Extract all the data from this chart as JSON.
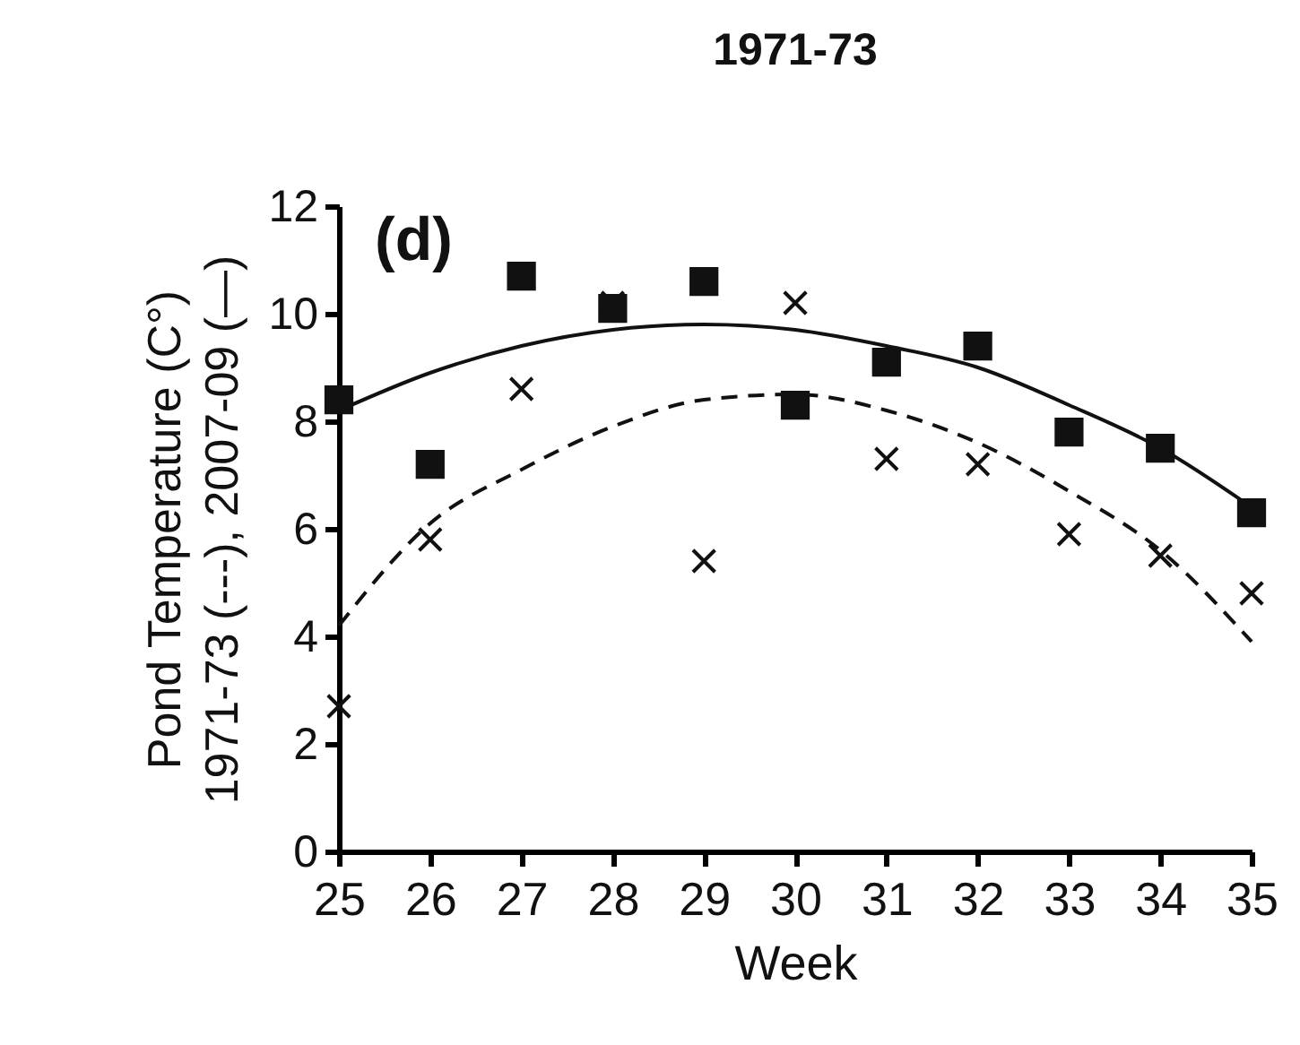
{
  "chart_data": {
    "type": "scatter",
    "title": "1971-73",
    "xlabel": "Week",
    "ylabel": "Pond Temperature (C°)\n1971-73 (---),  2007-09 (—)",
    "x": [
      25,
      26,
      27,
      28,
      29,
      30,
      31,
      32,
      33,
      34,
      35
    ],
    "series": [
      {
        "marker": "square",
        "color": "#111111",
        "values": [
          8.4,
          7.2,
          10.7,
          10.1,
          10.6,
          8.3,
          9.1,
          9.4,
          7.8,
          7.5,
          6.3
        ]
      },
      {
        "marker": "cross",
        "color": "#111111",
        "values": [
          2.7,
          5.8,
          8.6,
          10.2,
          5.4,
          10.2,
          7.3,
          7.2,
          5.9,
          5.5,
          4.8
        ]
      },
      {
        "type": "line",
        "marker": "none",
        "line_style": "solid",
        "color": "#111111",
        "values": [
          8.2,
          8.9,
          9.4,
          9.7,
          9.8,
          9.7,
          9.4,
          9.0,
          8.3,
          7.5,
          6.4
        ]
      },
      {
        "type": "line",
        "marker": "none",
        "line_style": "dashed",
        "color": "#111111",
        "values": [
          4.2,
          6.1,
          7.1,
          7.9,
          8.4,
          8.5,
          8.2,
          7.6,
          6.7,
          5.6,
          3.9
        ]
      }
    ],
    "xlim": [
      25,
      35
    ],
    "xticks": [
      25,
      26,
      27,
      28,
      29,
      30,
      31,
      32,
      33,
      34,
      35
    ],
    "ylim": [
      0,
      12
    ],
    "yticks": [
      0,
      2,
      4,
      6,
      8,
      10,
      12
    ],
    "grid": false,
    "annotations": [
      "(d)"
    ]
  }
}
